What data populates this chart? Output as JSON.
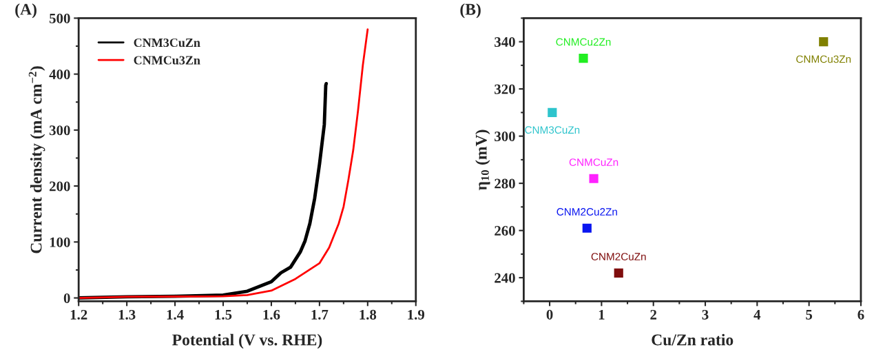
{
  "chart_data": [
    {
      "type": "line",
      "title": "(A)",
      "xlabel": "Potential (V vs. RHE)",
      "ylabel": "Current density (mA cm$^{−2}$)",
      "xlim": [
        1.2,
        1.9
      ],
      "ylim": [
        -6,
        500
      ],
      "xticks": [
        1.2,
        1.3,
        1.4,
        1.5,
        1.6,
        1.7,
        1.8,
        1.9
      ],
      "yticks": [
        0,
        100,
        200,
        300,
        400,
        500
      ],
      "legend": "top left",
      "grid": false,
      "marker": "none",
      "line_style": "solid",
      "series": [
        {
          "name": "CNM3CuZn",
          "color": "#000000",
          "x": [
            1.2,
            1.3,
            1.4,
            1.5,
            1.55,
            1.6,
            1.62,
            1.64,
            1.66,
            1.67,
            1.68,
            1.69,
            1.7,
            1.71,
            1.713,
            1.714
          ],
          "values": [
            0,
            2,
            3,
            5,
            12,
            29,
            45,
            55,
            82,
            102,
            133,
            178,
            239,
            310,
            380,
            383
          ]
        },
        {
          "name": "CNMCu3Zn",
          "color": "#ff0000",
          "x": [
            1.2,
            1.3,
            1.5,
            1.55,
            1.6,
            1.65,
            1.7,
            1.72,
            1.74,
            1.75,
            1.76,
            1.77,
            1.78,
            1.79,
            1.8
          ],
          "values": [
            0,
            2,
            3,
            5,
            13,
            34,
            62,
            90,
            133,
            163,
            211,
            264,
            335,
            416,
            480
          ]
        }
      ]
    },
    {
      "type": "scatter",
      "title": "(B)",
      "xlabel": "Cu/Zn ratio",
      "ylabel": "η$_{10}$ (mV)",
      "xlim": [
        -0.5,
        6
      ],
      "ylim": [
        230,
        350
      ],
      "xticks": [
        0,
        1,
        2,
        3,
        4,
        5,
        6
      ],
      "yticks": [
        240,
        260,
        280,
        300,
        320,
        340
      ],
      "grid": false,
      "marker": "square",
      "series": [
        {
          "name": "CNMCu2Zn",
          "color": "#22ee22",
          "x": [
            0.65
          ],
          "values": [
            333
          ]
        },
        {
          "name": "CNM3CuZn",
          "color": "#2ec4cc",
          "x": [
            0.05
          ],
          "values": [
            310
          ]
        },
        {
          "name": "CNMCuZn",
          "color": "#ff22ff",
          "x": [
            0.85
          ],
          "values": [
            282
          ]
        },
        {
          "name": "CNM2Cu2Zn",
          "color": "#0a16f0",
          "x": [
            0.72
          ],
          "values": [
            261
          ]
        },
        {
          "name": "CNM2CuZn",
          "color": "#7f0d0d",
          "x": [
            1.33
          ],
          "values": [
            242
          ]
        },
        {
          "name": "CNMCu3Zn",
          "color": "#808000",
          "x": [
            5.28
          ],
          "values": [
            340
          ]
        }
      ]
    }
  ]
}
